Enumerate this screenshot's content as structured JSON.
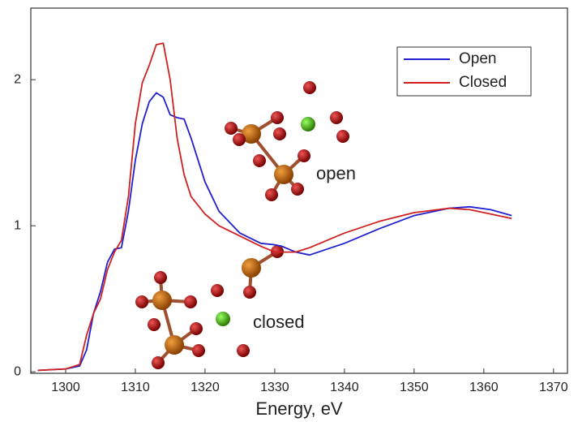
{
  "chart_data": {
    "type": "line",
    "x_label": "Energy, eV",
    "annotations": [
      "open",
      "closed"
    ],
    "xlim": [
      1295,
      1372
    ],
    "xticks": [
      1300,
      1310,
      1320,
      1330,
      1340,
      1350,
      1360,
      1370
    ],
    "ylim": [
      -0.01,
      2.49
    ],
    "yticks": [
      0,
      1,
      2
    ],
    "legend": "upper right",
    "series": [
      {
        "name": "Open",
        "color": "#2020d0",
        "x": [
          1296,
          1300,
          1302,
          1303,
          1304,
          1305,
          1306,
          1307,
          1308,
          1309,
          1310,
          1311,
          1312,
          1313,
          1314,
          1315,
          1316,
          1317,
          1318,
          1320,
          1322,
          1325,
          1328,
          1330,
          1331,
          1333,
          1335,
          1340,
          1345,
          1350,
          1355,
          1358,
          1361,
          1364
        ],
        "values": [
          0.01,
          0.02,
          0.04,
          0.15,
          0.4,
          0.55,
          0.75,
          0.84,
          0.85,
          1.1,
          1.45,
          1.7,
          1.85,
          1.91,
          1.88,
          1.76,
          1.74,
          1.73,
          1.6,
          1.3,
          1.1,
          0.95,
          0.88,
          0.87,
          0.86,
          0.82,
          0.8,
          0.88,
          0.98,
          1.07,
          1.12,
          1.13,
          1.11,
          1.07
        ]
      },
      {
        "name": "Closed",
        "color": "#d02020",
        "x": [
          1296,
          1300,
          1302,
          1303,
          1304,
          1305,
          1306,
          1307,
          1308,
          1309,
          1310,
          1311,
          1312,
          1313,
          1314,
          1315,
          1316,
          1317,
          1318,
          1320,
          1322,
          1325,
          1328,
          1330,
          1333,
          1335,
          1340,
          1345,
          1350,
          1355,
          1358,
          1361,
          1364
        ],
        "values": [
          0.01,
          0.02,
          0.05,
          0.25,
          0.4,
          0.5,
          0.7,
          0.82,
          0.9,
          1.2,
          1.7,
          1.98,
          2.1,
          2.24,
          2.25,
          2.0,
          1.6,
          1.35,
          1.2,
          1.08,
          1.0,
          0.93,
          0.86,
          0.82,
          0.82,
          0.85,
          0.95,
          1.03,
          1.09,
          1.12,
          1.11,
          1.08,
          1.05
        ]
      }
    ]
  }
}
